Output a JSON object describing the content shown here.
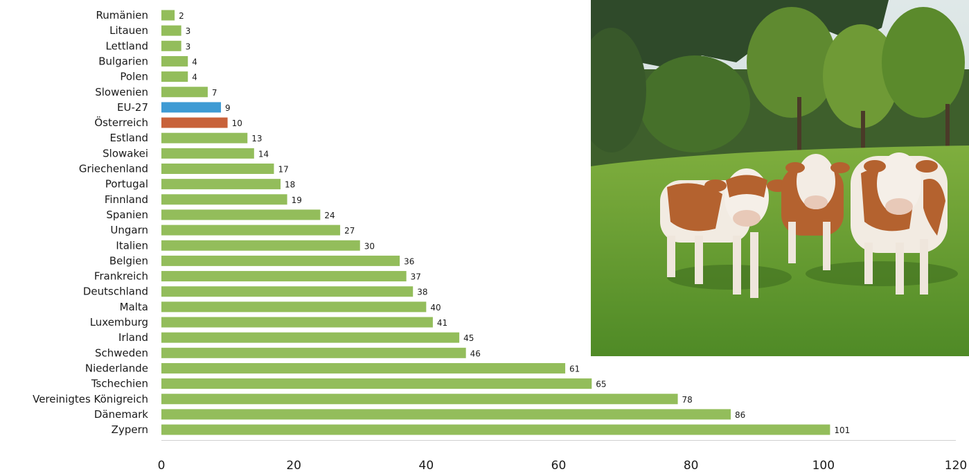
{
  "chart_data": {
    "type": "bar",
    "orientation": "horizontal",
    "categories": [
      "Rumänien",
      "Litauen",
      "Lettland",
      "Bulgarien",
      "Polen",
      "Slowenien",
      "EU-27",
      "Österreich",
      "Estland",
      "Slowakei",
      "Griechenland",
      "Portugal",
      "Finnland",
      "Spanien",
      "Ungarn",
      "Italien",
      "Belgien",
      "Frankreich",
      "Deutschland",
      "Malta",
      "Luxemburg",
      "Irland",
      "Schweden",
      "Niederlande",
      "Tschechien",
      "Vereinigtes Königreich",
      "Dänemark",
      "Zypern"
    ],
    "values": [
      2,
      3,
      3,
      4,
      4,
      7,
      9,
      10,
      13,
      14,
      17,
      18,
      19,
      24,
      27,
      30,
      36,
      37,
      38,
      40,
      41,
      45,
      46,
      61,
      65,
      78,
      86,
      101
    ],
    "xticks": [
      0,
      20,
      40,
      60,
      80,
      100,
      120
    ],
    "xlim": [
      0,
      120
    ],
    "grid": false,
    "colors": {
      "default": "#93bd5b",
      "EU-27": "#3f9bd4",
      "Österreich": "#c8623a"
    },
    "title": "",
    "xlabel": "",
    "ylabel": ""
  },
  "photo": {
    "icon": "cows-on-meadow-photo"
  }
}
